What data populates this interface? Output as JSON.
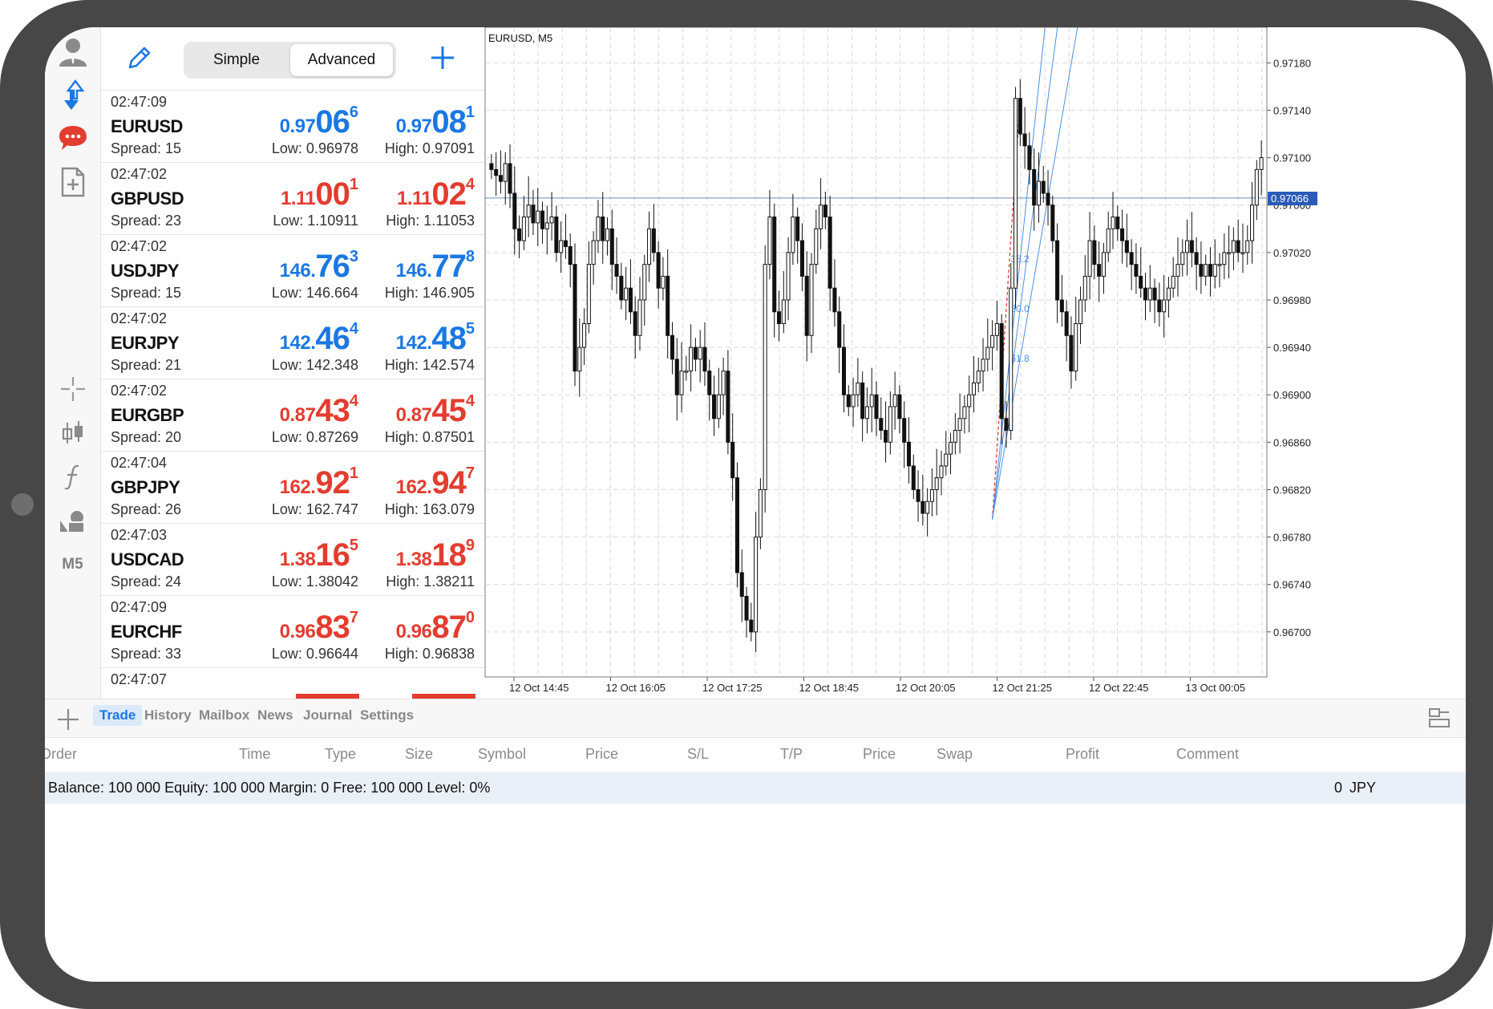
{
  "header": {
    "simple_label": "Simple",
    "advanced_label": "Advanced"
  },
  "toolbar": {
    "timeframe_label": "M5"
  },
  "quotes": [
    {
      "time": "02:47:09",
      "symbol": "EURUSD",
      "spread": "Spread: 15",
      "bid_pre": "0.97",
      "bid_big": "06",
      "bid_sup": "6",
      "ask_pre": "0.97",
      "ask_big": "08",
      "ask_sup": "1",
      "low": "Low: 0.96978",
      "high": "High: 0.97091",
      "dir": "up"
    },
    {
      "time": "02:47:02",
      "symbol": "GBPUSD",
      "spread": "Spread: 23",
      "bid_pre": "1.11",
      "bid_big": "00",
      "bid_sup": "1",
      "ask_pre": "1.11",
      "ask_big": "02",
      "ask_sup": "4",
      "low": "Low: 1.10911",
      "high": "High: 1.11053",
      "dir": "down"
    },
    {
      "time": "02:47:02",
      "symbol": "USDJPY",
      "spread": "Spread: 15",
      "bid_pre": "146.",
      "bid_big": "76",
      "bid_sup": "3",
      "ask_pre": "146.",
      "ask_big": "77",
      "ask_sup": "8",
      "low": "Low: 146.664",
      "high": "High: 146.905",
      "dir": "up"
    },
    {
      "time": "02:47:02",
      "symbol": "EURJPY",
      "spread": "Spread: 21",
      "bid_pre": "142.",
      "bid_big": "46",
      "bid_sup": "4",
      "ask_pre": "142.",
      "ask_big": "48",
      "ask_sup": "5",
      "low": "Low: 142.348",
      "high": "High: 142.574",
      "dir": "up"
    },
    {
      "time": "02:47:02",
      "symbol": "EURGBP",
      "spread": "Spread: 20",
      "bid_pre": "0.87",
      "bid_big": "43",
      "bid_sup": "4",
      "ask_pre": "0.87",
      "ask_big": "45",
      "ask_sup": "4",
      "low": "Low: 0.87269",
      "high": "High: 0.87501",
      "dir": "down"
    },
    {
      "time": "02:47:04",
      "symbol": "GBPJPY",
      "spread": "Spread: 26",
      "bid_pre": "162.",
      "bid_big": "92",
      "bid_sup": "1",
      "ask_pre": "162.",
      "ask_big": "94",
      "ask_sup": "7",
      "low": "Low: 162.747",
      "high": "High: 163.079",
      "dir": "down"
    },
    {
      "time": "02:47:03",
      "symbol": "USDCAD",
      "spread": "Spread: 24",
      "bid_pre": "1.38",
      "bid_big": "16",
      "bid_sup": "5",
      "ask_pre": "1.38",
      "ask_big": "18",
      "ask_sup": "9",
      "low": "Low: 1.38042",
      "high": "High: 1.38211",
      "dir": "down"
    },
    {
      "time": "02:47:09",
      "symbol": "EURCHF",
      "spread": "Spread: 33",
      "bid_pre": "0.96",
      "bid_big": "83",
      "bid_sup": "7",
      "ask_pre": "0.96",
      "ask_big": "87",
      "ask_sup": "0",
      "low": "Low: 0.96644",
      "high": "High: 0.96838",
      "dir": "down"
    },
    {
      "time": "02:47:07",
      "symbol": "",
      "spread": "",
      "bid_pre": "",
      "bid_big": "",
      "bid_sup": "",
      "ask_pre": "",
      "ask_big": "",
      "ask_sup": "",
      "low": "",
      "high": "",
      "dir": "down"
    }
  ],
  "colors": {
    "up": "#1a78e2",
    "down": "#e23d2f",
    "accent": "#1a78e2",
    "fibo": "#4d90e0",
    "grid": "#d9d9d9"
  },
  "chart": {
    "title": "EURUSD, M5",
    "current_price": "0.97066",
    "fibo_labels": [
      "38.2",
      "50.0",
      "61.8"
    ]
  },
  "chart_data": {
    "type": "candlestick",
    "symbol": "EURUSD",
    "timeframe": "M5",
    "y_ticks": [
      "0.97180",
      "0.97140",
      "0.97100",
      "0.97060",
      "0.97020",
      "0.96980",
      "0.96940",
      "0.96900",
      "0.96860",
      "0.96820",
      "0.96780",
      "0.96740",
      "0.96700"
    ],
    "y_tick_values": [
      0.9718,
      0.9714,
      0.971,
      0.9706,
      0.9702,
      0.9698,
      0.9694,
      0.969,
      0.9686,
      0.9682,
      0.9678,
      0.9674,
      0.967
    ],
    "x_ticks": [
      "12 Oct 14:45",
      "12 Oct 16:05",
      "12 Oct 17:25",
      "12 Oct 18:45",
      "12 Oct 20:05",
      "12 Oct 21:25",
      "12 Oct 22:45",
      "13 Oct 00:05"
    ],
    "ylim": [
      0.96662,
      0.9721
    ],
    "bid_line": 0.97066,
    "fibo_percent": [
      38.2,
      50.0,
      61.8
    ],
    "close": [
      0.9709,
      0.97085,
      0.9708,
      0.97095,
      0.9707,
      0.9704,
      0.9703,
      0.9705,
      0.9706,
      0.97045,
      0.97055,
      0.9704,
      0.97045,
      0.9705,
      0.9702,
      0.9703,
      0.97025,
      0.9701,
      0.9692,
      0.9694,
      0.9696,
      0.9701,
      0.9703,
      0.9705,
      0.9703,
      0.9704,
      0.9701,
      0.97,
      0.9698,
      0.9699,
      0.9697,
      0.9695,
      0.9698,
      0.9701,
      0.9704,
      0.9702,
      0.9699,
      0.97,
      0.9695,
      0.9693,
      0.969,
      0.9692,
      0.9692,
      0.9694,
      0.9693,
      0.9694,
      0.9692,
      0.969,
      0.9688,
      0.969,
      0.9692,
      0.9686,
      0.9683,
      0.9675,
      0.9673,
      0.9671,
      0.967,
      0.9678,
      0.9682,
      0.9701,
      0.9705,
      0.9697,
      0.9696,
      0.9698,
      0.9702,
      0.9705,
      0.9703,
      0.97,
      0.9695,
      0.9701,
      0.9704,
      0.9706,
      0.9705,
      0.9699,
      0.9697,
      0.9694,
      0.969,
      0.9689,
      0.969,
      0.9691,
      0.9688,
      0.9689,
      0.969,
      0.9688,
      0.9687,
      0.9686,
      0.9689,
      0.969,
      0.9688,
      0.9686,
      0.9684,
      0.9682,
      0.9681,
      0.968,
      0.9681,
      0.9682,
      0.9683,
      0.9684,
      0.9685,
      0.9686,
      0.9687,
      0.9688,
      0.9689,
      0.969,
      0.9691,
      0.9692,
      0.9693,
      0.9694,
      0.9695,
      0.9696,
      0.9688,
      0.9687,
      0.9699,
      0.9715,
      0.9712,
      0.9711,
      0.9709,
      0.9706,
      0.9708,
      0.9707,
      0.9706,
      0.9703,
      0.9698,
      0.9697,
      0.9695,
      0.9692,
      0.9696,
      0.9698,
      0.97,
      0.9703,
      0.9701,
      0.97,
      0.9702,
      0.9704,
      0.9705,
      0.9704,
      0.9703,
      0.9702,
      0.9701,
      0.97,
      0.9699,
      0.9698,
      0.9699,
      0.9698,
      0.9697,
      0.9698,
      0.9699,
      0.97,
      0.9701,
      0.9702,
      0.9703,
      0.9702,
      0.9701,
      0.97,
      0.9701,
      0.97,
      0.9701,
      0.9701,
      0.9702,
      0.9702,
      0.9703,
      0.9702,
      0.9702,
      0.9703,
      0.9706,
      0.9709,
      0.971
    ]
  },
  "tabs": [
    "Trade",
    "History",
    "Mailbox",
    "News",
    "Journal",
    "Settings"
  ],
  "columns": [
    "Order",
    "Time",
    "Type",
    "Size",
    "Symbol",
    "Price",
    "S/L",
    "T/P",
    "Price",
    "Swap",
    "Profit",
    "Comment"
  ],
  "balance": {
    "summary": "Balance: 100 000 Equity: 100 000 Margin: 0 Free: 100 000 Level: 0%",
    "profit": "0",
    "currency": "JPY"
  }
}
